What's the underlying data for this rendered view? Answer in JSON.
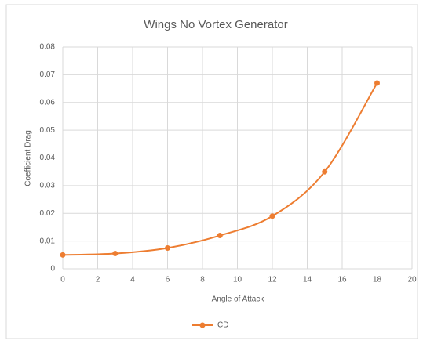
{
  "chart_data": {
    "type": "scatter-smooth",
    "title": "Wings No Vortex Generator",
    "x_label": "Angle of Attack",
    "y_label": "Coefficient Drag",
    "x": [
      0,
      3,
      6,
      9,
      12,
      15,
      18
    ],
    "series": [
      {
        "name": "CD",
        "color": "#ed7d31",
        "values": [
          0.005,
          0.0055,
          0.0075,
          0.012,
          0.019,
          0.035,
          0.067
        ]
      }
    ],
    "xlim": [
      0,
      20
    ],
    "xticks": [
      0,
      2,
      4,
      6,
      8,
      10,
      12,
      14,
      16,
      18,
      20
    ],
    "ylim": [
      0,
      0.08
    ],
    "yticks": [
      0,
      0.01,
      0.02,
      0.03,
      0.04,
      0.05,
      0.06,
      0.07,
      0.08
    ],
    "grid": true,
    "legend": "bottom"
  }
}
